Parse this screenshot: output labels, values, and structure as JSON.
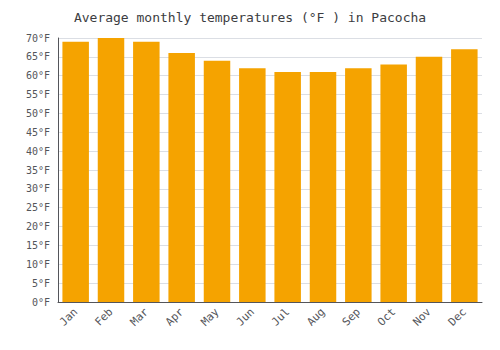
{
  "chart_data": {
    "type": "bar",
    "title": "Average monthly temperatures (°F ) in Pacocha",
    "categories": [
      "Jan",
      "Feb",
      "Mar",
      "Apr",
      "May",
      "Jun",
      "Jul",
      "Aug",
      "Sep",
      "Oct",
      "Nov",
      "Dec"
    ],
    "values": [
      69,
      70,
      69,
      66,
      64,
      62,
      61,
      61,
      62,
      63,
      65,
      67
    ],
    "color": "#F5A300",
    "ylim": [
      0,
      70
    ],
    "yticks": [
      {
        "value": 0,
        "label": "0°F"
      },
      {
        "value": 5,
        "label": "5°F"
      },
      {
        "value": 10,
        "label": "10°F"
      },
      {
        "value": 15,
        "label": "15°F"
      },
      {
        "value": 20,
        "label": "20°F"
      },
      {
        "value": 25,
        "label": "25°F"
      },
      {
        "value": 30,
        "label": "30°F"
      },
      {
        "value": 35,
        "label": "35°F"
      },
      {
        "value": 40,
        "label": "40°F"
      },
      {
        "value": 45,
        "label": "45°F"
      },
      {
        "value": 50,
        "label": "50°F"
      },
      {
        "value": 55,
        "label": "55°F"
      },
      {
        "value": 60,
        "label": "60°F"
      },
      {
        "value": 65,
        "label": "65°F"
      },
      {
        "value": 70,
        "label": "70°F"
      }
    ],
    "grid": true
  }
}
